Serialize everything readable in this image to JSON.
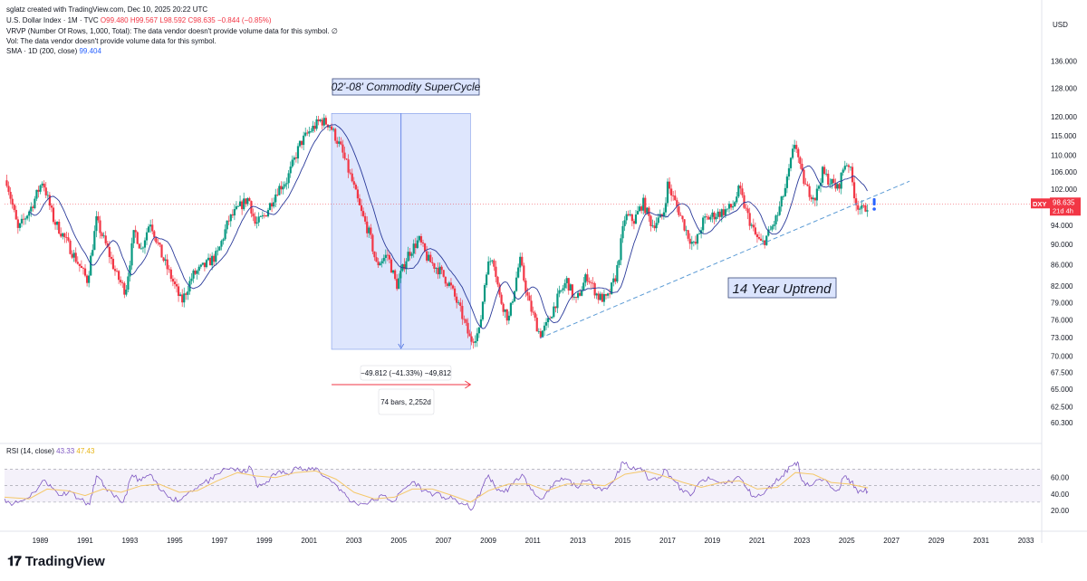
{
  "header": {
    "credit": "sglatz created with TradingView.com, Dec 10, 2025 20:22 UTC",
    "symbol": "U.S. Dollar Index · 1M · TVC",
    "ohlc": {
      "o": "O99.480",
      "h": "H99.567",
      "l": "L98.592",
      "c": "C98.635",
      "chg": "−0.844 (−0.85%)"
    },
    "vrvp": "VRVP (Number Of Rows, 1,000, Total): The data vendor doesn't provide volume data for this symbol.  ∅",
    "vol": "Vol: The data vendor doesn't provide volume data for this symbol.",
    "sma_label": "SMA · 1D (200, close)",
    "sma_value": "99.404"
  },
  "currency": "USD",
  "brand": "TradingView",
  "colors": {
    "up": "#089981",
    "down": "#f23645",
    "sma": "#2a3a9a",
    "range_fill": "#dbe4fd",
    "rsi": "#7e57c2",
    "rsi_ma": "#f5c86a",
    "trend": "#5b9bd5",
    "arrow": "#f23645",
    "price_badge": "#f23645"
  },
  "chart_data": [
    {
      "type": "candlestick",
      "title": "U.S. Dollar Index · 1M · TVC",
      "ylabel": "USD",
      "y_scale": "log",
      "ylim": [
        58.0,
        148.0
      ],
      "xlim": [
        1987.4,
        2033.7
      ],
      "y_ticks": [
        "136.000",
        "128.000",
        "120.000",
        "115.000",
        "110.000",
        "106.000",
        "102.000",
        "98.000",
        "94.000",
        "90.000",
        "86.000",
        "82.000",
        "79.000",
        "76.000",
        "73.000",
        "70.000",
        "67.500",
        "65.000",
        "62.500",
        "60.300"
      ],
      "x_ticks": [
        "1989",
        "1991",
        "1993",
        "1995",
        "1997",
        "1999",
        "2001",
        "2003",
        "2005",
        "2007",
        "2009",
        "2011",
        "2013",
        "2015",
        "2017",
        "2019",
        "2021",
        "2023",
        "2025",
        "2027",
        "2029",
        "2031",
        "2033"
      ],
      "price_path": [
        [
          1987.5,
          104
        ],
        [
          1988.0,
          93
        ],
        [
          1988.6,
          98
        ],
        [
          1989.1,
          104
        ],
        [
          1989.6,
          95
        ],
        [
          1990.0,
          92
        ],
        [
          1990.6,
          87
        ],
        [
          1991.1,
          83
        ],
        [
          1991.5,
          95
        ],
        [
          1992.0,
          89
        ],
        [
          1992.4,
          84
        ],
        [
          1992.8,
          81
        ],
        [
          1993.2,
          93
        ],
        [
          1993.5,
          89
        ],
        [
          1993.9,
          95
        ],
        [
          1994.4,
          88
        ],
        [
          1994.9,
          83
        ],
        [
          1995.3,
          79
        ],
        [
          1995.8,
          84
        ],
        [
          1996.4,
          86
        ],
        [
          1996.9,
          88
        ],
        [
          1997.4,
          95
        ],
        [
          1997.9,
          98
        ],
        [
          1998.3,
          100
        ],
        [
          1998.6,
          94
        ],
        [
          1999.0,
          96
        ],
        [
          1999.6,
          102
        ],
        [
          2000.0,
          104
        ],
        [
          2000.6,
          113
        ],
        [
          2001.0,
          116
        ],
        [
          2001.5,
          119
        ],
        [
          2001.9,
          118
        ],
        [
          2002.4,
          112
        ],
        [
          2002.9,
          104
        ],
        [
          2003.3,
          97
        ],
        [
          2003.7,
          92
        ],
        [
          2004.0,
          86
        ],
        [
          2004.5,
          88
        ],
        [
          2004.9,
          82
        ],
        [
          2005.4,
          88
        ],
        [
          2005.9,
          91
        ],
        [
          2006.3,
          87
        ],
        [
          2006.8,
          85
        ],
        [
          2007.3,
          82
        ],
        [
          2007.8,
          77
        ],
        [
          2008.2,
          72.5
        ],
        [
          2008.6,
          74
        ],
        [
          2008.9,
          85
        ],
        [
          2009.2,
          88
        ],
        [
          2009.5,
          80
        ],
        [
          2009.9,
          76
        ],
        [
          2010.4,
          87
        ],
        [
          2010.8,
          79
        ],
        [
          2011.3,
          73.5
        ],
        [
          2011.6,
          75
        ],
        [
          2012.0,
          79
        ],
        [
          2012.5,
          83
        ],
        [
          2012.9,
          79
        ],
        [
          2013.4,
          84
        ],
        [
          2013.9,
          80
        ],
        [
          2014.3,
          79.5
        ],
        [
          2014.7,
          84
        ],
        [
          2015.1,
          96
        ],
        [
          2015.5,
          95
        ],
        [
          2015.9,
          99
        ],
        [
          2016.3,
          94
        ],
        [
          2016.8,
          96
        ],
        [
          2017.0,
          103
        ],
        [
          2017.5,
          97
        ],
        [
          2017.9,
          92
        ],
        [
          2018.2,
          89.5
        ],
        [
          2018.6,
          95
        ],
        [
          2019.0,
          96
        ],
        [
          2019.5,
          97
        ],
        [
          2019.9,
          98
        ],
        [
          2020.2,
          102
        ],
        [
          2020.5,
          97
        ],
        [
          2020.9,
          92
        ],
        [
          2021.2,
          90
        ],
        [
          2021.6,
          93
        ],
        [
          2021.9,
          96
        ],
        [
          2022.3,
          103
        ],
        [
          2022.7,
          114
        ],
        [
          2022.9,
          107
        ],
        [
          2023.2,
          102
        ],
        [
          2023.6,
          100
        ],
        [
          2023.9,
          106
        ],
        [
          2024.2,
          104
        ],
        [
          2024.6,
          102
        ],
        [
          2024.9,
          108
        ],
        [
          2025.1,
          108
        ],
        [
          2025.4,
          99
        ],
        [
          2025.7,
          97
        ],
        [
          2025.94,
          98.6
        ]
      ],
      "sma_label": "SMA (200)",
      "current_price": "98.635",
      "countdown": "21d 4h",
      "symbol_badge": "DXY",
      "annotations": {
        "supercycle_label": "02'-08' Commodity SuperCycle",
        "uptrend_label": "14 Year Uptrend",
        "range_change": "−49.812 (−41.33%) −49,812",
        "range_span": "74 bars, 2,252d",
        "range": {
          "x0": 2002.0,
          "x1": 2008.2,
          "y_top": 120.9,
          "y_bottom": 71.1
        },
        "trendline": [
          [
            2011.3,
            72.9
          ],
          [
            2027.8,
            103.8
          ]
        ],
        "alert_marker_x": 2025.9
      }
    },
    {
      "type": "line",
      "title": "RSI (14, close)",
      "values_label": [
        "43.33",
        "47.43"
      ],
      "ylim": [
        10,
        85
      ],
      "y_ticks": [
        "60.00",
        "40.00",
        "20.00"
      ],
      "bands": [
        30,
        50,
        70
      ],
      "series": [
        {
          "name": "RSI",
          "values": [
            [
              1987.4,
              34
            ],
            [
              1987.8,
              28
            ],
            [
              1988.3,
              33
            ],
            [
              1988.7,
              42
            ],
            [
              1989.2,
              57
            ],
            [
              1989.5,
              48
            ],
            [
              1989.9,
              38
            ],
            [
              1990.3,
              44
            ],
            [
              1990.8,
              33
            ],
            [
              1991.2,
              27
            ],
            [
              1991.5,
              62
            ],
            [
              1991.9,
              48
            ],
            [
              1992.3,
              36
            ],
            [
              1992.7,
              30
            ],
            [
              1993.1,
              63
            ],
            [
              1993.5,
              56
            ],
            [
              1993.9,
              64
            ],
            [
              1994.3,
              46
            ],
            [
              1994.8,
              36
            ],
            [
              1995.2,
              32
            ],
            [
              1995.7,
              44
            ],
            [
              1996.2,
              52
            ],
            [
              1996.7,
              58
            ],
            [
              1997.1,
              68
            ],
            [
              1997.5,
              72
            ],
            [
              1998.0,
              66
            ],
            [
              1998.4,
              72
            ],
            [
              1998.7,
              48
            ],
            [
              1999.1,
              55
            ],
            [
              1999.6,
              67
            ],
            [
              2000.0,
              65
            ],
            [
              2000.4,
              73
            ],
            [
              2000.9,
              68
            ],
            [
              2001.3,
              72
            ],
            [
              2001.7,
              61
            ],
            [
              2002.1,
              54
            ],
            [
              2002.5,
              42
            ],
            [
              2002.9,
              30
            ],
            [
              2003.4,
              28
            ],
            [
              2003.9,
              32
            ],
            [
              2004.3,
              38
            ],
            [
              2004.8,
              31
            ],
            [
              2005.2,
              46
            ],
            [
              2005.7,
              55
            ],
            [
              2006.1,
              44
            ],
            [
              2006.6,
              40
            ],
            [
              2007.0,
              36
            ],
            [
              2007.4,
              34
            ],
            [
              2007.9,
              27
            ],
            [
              2008.3,
              22
            ],
            [
              2008.7,
              46
            ],
            [
              2009.0,
              63
            ],
            [
              2009.3,
              48
            ],
            [
              2009.7,
              42
            ],
            [
              2010.1,
              52
            ],
            [
              2010.5,
              64
            ],
            [
              2010.9,
              45
            ],
            [
              2011.3,
              34
            ],
            [
              2011.7,
              43
            ],
            [
              2012.1,
              56
            ],
            [
              2012.5,
              58
            ],
            [
              2012.9,
              49
            ],
            [
              2013.4,
              56
            ],
            [
              2013.9,
              48
            ],
            [
              2014.3,
              46
            ],
            [
              2014.7,
              62
            ],
            [
              2015.0,
              79
            ],
            [
              2015.4,
              70
            ],
            [
              2015.8,
              72
            ],
            [
              2016.2,
              57
            ],
            [
              2016.6,
              60
            ],
            [
              2016.9,
              70
            ],
            [
              2017.3,
              56
            ],
            [
              2017.7,
              42
            ],
            [
              2018.1,
              40
            ],
            [
              2018.5,
              56
            ],
            [
              2018.9,
              58
            ],
            [
              2019.4,
              53
            ],
            [
              2019.8,
              55
            ],
            [
              2020.2,
              61
            ],
            [
              2020.6,
              44
            ],
            [
              2020.9,
              36
            ],
            [
              2021.3,
              40
            ],
            [
              2021.7,
              52
            ],
            [
              2022.1,
              62
            ],
            [
              2022.5,
              74
            ],
            [
              2022.8,
              79
            ],
            [
              2023.0,
              56
            ],
            [
              2023.4,
              50
            ],
            [
              2023.8,
              58
            ],
            [
              2024.2,
              52
            ],
            [
              2024.6,
              45
            ],
            [
              2024.9,
              62
            ],
            [
              2025.2,
              55
            ],
            [
              2025.5,
              41
            ],
            [
              2025.8,
              45
            ],
            [
              2025.94,
              43.3
            ]
          ]
        },
        {
          "name": "RSI-MA",
          "values": [
            [
              1987.4,
              36
            ],
            [
              1988.5,
              34
            ],
            [
              1989.3,
              46
            ],
            [
              1990.2,
              44
            ],
            [
              1991.0,
              38
            ],
            [
              1991.8,
              46
            ],
            [
              1992.6,
              42
            ],
            [
              1993.5,
              50
            ],
            [
              1994.3,
              52
            ],
            [
              1995.2,
              42
            ],
            [
              1996.0,
              44
            ],
            [
              1996.9,
              56
            ],
            [
              1997.8,
              66
            ],
            [
              1998.6,
              62
            ],
            [
              1999.5,
              60
            ],
            [
              2000.4,
              66
            ],
            [
              2001.3,
              68
            ],
            [
              2002.2,
              58
            ],
            [
              2003.0,
              42
            ],
            [
              2003.9,
              34
            ],
            [
              2004.8,
              36
            ],
            [
              2005.6,
              46
            ],
            [
              2006.5,
              46
            ],
            [
              2007.4,
              38
            ],
            [
              2008.2,
              30
            ],
            [
              2009.0,
              44
            ],
            [
              2009.9,
              52
            ],
            [
              2010.8,
              52
            ],
            [
              2011.6,
              44
            ],
            [
              2012.5,
              52
            ],
            [
              2013.4,
              52
            ],
            [
              2014.2,
              50
            ],
            [
              2015.1,
              64
            ],
            [
              2016.0,
              68
            ],
            [
              2016.8,
              62
            ],
            [
              2017.7,
              54
            ],
            [
              2018.5,
              48
            ],
            [
              2019.4,
              54
            ],
            [
              2020.2,
              56
            ],
            [
              2021.0,
              46
            ],
            [
              2021.9,
              48
            ],
            [
              2022.7,
              66
            ],
            [
              2023.5,
              64
            ],
            [
              2024.3,
              54
            ],
            [
              2025.1,
              52
            ],
            [
              2025.94,
              47.4
            ]
          ]
        }
      ]
    }
  ]
}
